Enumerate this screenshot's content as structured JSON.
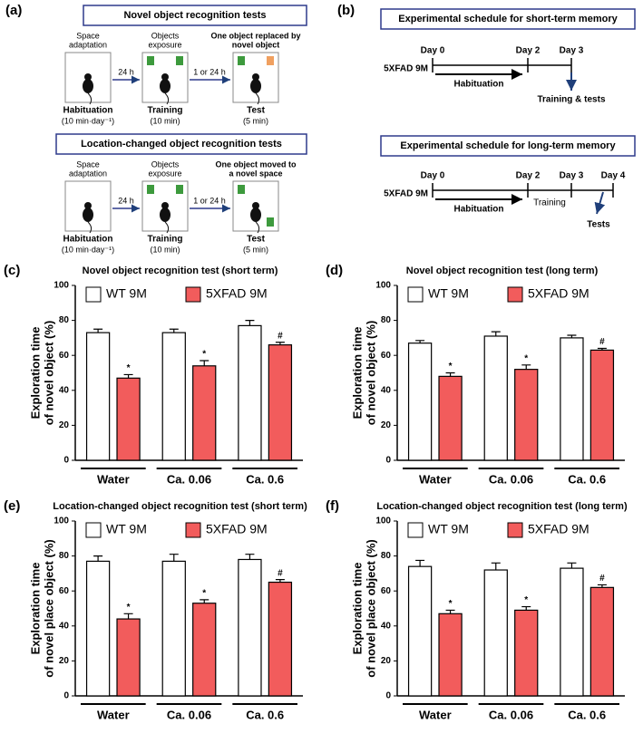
{
  "panel_a": {
    "label": "(a)",
    "box1": {
      "title": "Novel object recognition tests",
      "top": [
        [
          "Space",
          "adaptation"
        ],
        [
          "Objects",
          "exposure"
        ],
        [
          "One object replaced by",
          "novel object"
        ]
      ],
      "arrows": [
        "24 h",
        "1 or 24 h"
      ],
      "bottom": [
        [
          "Habituation",
          "(10 min·day⁻¹)"
        ],
        [
          "Training",
          "(10 min)"
        ],
        [
          "Test",
          "(5 min)"
        ]
      ]
    },
    "box2": {
      "title": "Location-changed object recognition tests",
      "top": [
        [
          "Space",
          "adaptation"
        ],
        [
          "Objects",
          "exposure"
        ],
        [
          "One object moved to",
          "a novel space"
        ]
      ],
      "arrows": [
        "24 h",
        "1 or 24 h"
      ],
      "bottom": [
        [
          "Habituation",
          "(10 min·day⁻¹)"
        ],
        [
          "Training",
          "(10 min)"
        ],
        [
          "Test",
          "(5 min)"
        ]
      ]
    }
  },
  "panel_b": {
    "label": "(b)",
    "short": {
      "title": "Experimental schedule for short-term memory",
      "days": [
        "Day 0",
        "Day 2",
        "Day 3"
      ],
      "group": "5XFAD 9M",
      "phase": "Habituation",
      "end": "Training & tests"
    },
    "long": {
      "title": "Experimental schedule for long-term memory",
      "days": [
        "Day 0",
        "Day 2",
        "Day 3",
        "Day 4"
      ],
      "group": "5XFAD 9M",
      "phase": "Habituation",
      "mid": "Training",
      "end": "Tests"
    }
  },
  "chart_data": [
    {
      "type": "bar",
      "panel": "(c)",
      "title": "Novel object recognition test (short term)",
      "y_label": [
        "Exploration time",
        "of novel object (%)"
      ],
      "categories": [
        "Water",
        "Ca. 0.06",
        "Ca. 0.6"
      ],
      "ylim": [
        0,
        100
      ],
      "yticks": [
        0,
        20,
        40,
        60,
        80,
        100
      ],
      "grid": false,
      "series": [
        {
          "name": "WT 9M",
          "color": "#ffffff",
          "values": [
            73,
            73,
            77
          ],
          "errors": [
            2,
            2,
            3
          ]
        },
        {
          "name": "5XFAD 9M",
          "color": "#f25c5c",
          "values": [
            47,
            54,
            66
          ],
          "errors": [
            2,
            3,
            1.5
          ],
          "annotations": [
            "*",
            "*",
            "#"
          ]
        }
      ]
    },
    {
      "type": "bar",
      "panel": "(d)",
      "title": "Novel object recognition test (long term)",
      "y_label": [
        "Exploration time",
        "of novel object (%)"
      ],
      "categories": [
        "Water",
        "Ca. 0.06",
        "Ca. 0.6"
      ],
      "ylim": [
        0,
        100
      ],
      "yticks": [
        0,
        20,
        40,
        60,
        80,
        100
      ],
      "grid": false,
      "series": [
        {
          "name": "WT 9M",
          "color": "#ffffff",
          "values": [
            67,
            71,
            70
          ],
          "errors": [
            1.5,
            2.5,
            1.5
          ]
        },
        {
          "name": "5XFAD 9M",
          "color": "#f25c5c",
          "values": [
            48,
            52,
            63
          ],
          "errors": [
            2,
            2.5,
            1
          ],
          "annotations": [
            "*",
            "*",
            "#"
          ]
        }
      ]
    },
    {
      "type": "bar",
      "panel": "(e)",
      "title": "Location-changed object recognition test (short term)",
      "y_label": [
        "Exploration time",
        "of novel place object (%)"
      ],
      "categories": [
        "Water",
        "Ca. 0.06",
        "Ca. 0.6"
      ],
      "ylim": [
        0,
        100
      ],
      "yticks": [
        0,
        20,
        40,
        60,
        80,
        100
      ],
      "grid": false,
      "series": [
        {
          "name": "WT 9M",
          "color": "#ffffff",
          "values": [
            77,
            77,
            78
          ],
          "errors": [
            3,
            4,
            3
          ]
        },
        {
          "name": "5XFAD 9M",
          "color": "#f25c5c",
          "values": [
            44,
            53,
            65
          ],
          "errors": [
            3,
            2,
            1.5
          ],
          "annotations": [
            "*",
            "*",
            "#"
          ]
        }
      ]
    },
    {
      "type": "bar",
      "panel": "(f)",
      "title": "Location-changed object recognition test (long term)",
      "y_label": [
        "Exploration time",
        "of novel place object (%)"
      ],
      "categories": [
        "Water",
        "Ca. 0.06",
        "Ca. 0.6"
      ],
      "ylim": [
        0,
        100
      ],
      "yticks": [
        0,
        20,
        40,
        60,
        80,
        100
      ],
      "grid": false,
      "series": [
        {
          "name": "WT 9M",
          "color": "#ffffff",
          "values": [
            74,
            72,
            73
          ],
          "errors": [
            3.5,
            4,
            3
          ]
        },
        {
          "name": "5XFAD 9M",
          "color": "#f25c5c",
          "values": [
            47,
            49,
            62
          ],
          "errors": [
            2,
            2,
            1.5
          ],
          "annotations": [
            "*",
            "*",
            "#"
          ]
        }
      ]
    }
  ]
}
